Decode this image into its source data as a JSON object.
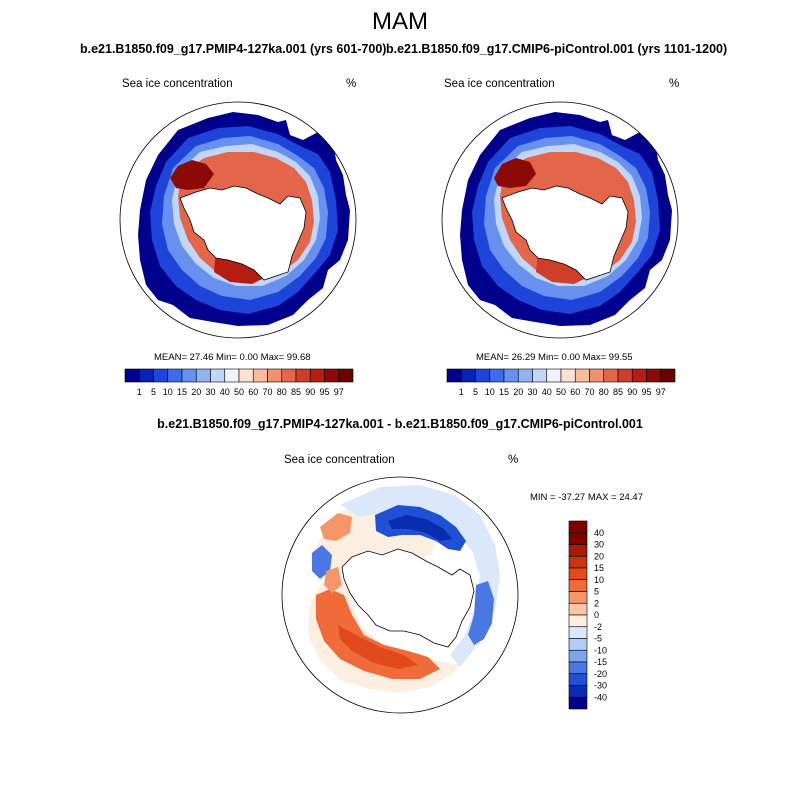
{
  "title": "MAM",
  "panels": [
    {
      "title": "b.e21.B1850.f09_g17.PMIP4-127ka.001 (yrs 601-700)",
      "left_label": "Sea ice concentration",
      "right_label": "%",
      "stats": "MEAN=  27.46  Min=   0.00  Max=  99.68",
      "colorbar_ticks": [
        "1",
        "5",
        "10",
        "15",
        "20",
        "30",
        "40",
        "50",
        "60",
        "70",
        "80",
        "85",
        "90",
        "95",
        "97"
      ]
    },
    {
      "title": "b.e21.B1850.f09_g17.CMIP6-piControl.001 (yrs 1101-1200)",
      "left_label": "Sea ice concentration",
      "right_label": "%",
      "stats": "MEAN=  26.29  Min=   0.00  Max=  99.55",
      "colorbar_ticks": [
        "1",
        "5",
        "10",
        "15",
        "20",
        "30",
        "40",
        "50",
        "60",
        "70",
        "80",
        "85",
        "90",
        "95",
        "97"
      ]
    }
  ],
  "diff": {
    "title": "b.e21.B1850.f09_g17.PMIP4-127ka.001 - b.e21.B1850.f09_g17.CMIP6-piControl.001",
    "left_label": "Sea ice concentration",
    "right_label": "%",
    "minmax": "MIN = -37.27 MAX =  24.47",
    "colorbar_ticks": [
      "40",
      "30",
      "20",
      "15",
      "10",
      "5",
      "2",
      "0",
      "-2",
      "-5",
      "-10",
      "-15",
      "-20",
      "-30",
      "-40"
    ]
  },
  "colors": {
    "abs_scale": [
      "#00008c",
      "#0a1fb4",
      "#1f44d9",
      "#3f6ae8",
      "#6790ef",
      "#93b2f4",
      "#c2d5fa",
      "#eef3fd",
      "#fde2d2",
      "#f9bba0",
      "#f19172",
      "#e4664a",
      "#cf3e28",
      "#b51d12",
      "#8c0a05",
      "#6b0000"
    ],
    "diff_scale": [
      "#800000",
      "#a81a08",
      "#c83412",
      "#e04a1c",
      "#ef6c3a",
      "#f7956a",
      "#fcc6a6",
      "#fdeee2",
      "#dbe8fb",
      "#b3cbf5",
      "#7ea4ee",
      "#4a78e3",
      "#2050d6",
      "#0a2cb0",
      "#00008c"
    ]
  }
}
